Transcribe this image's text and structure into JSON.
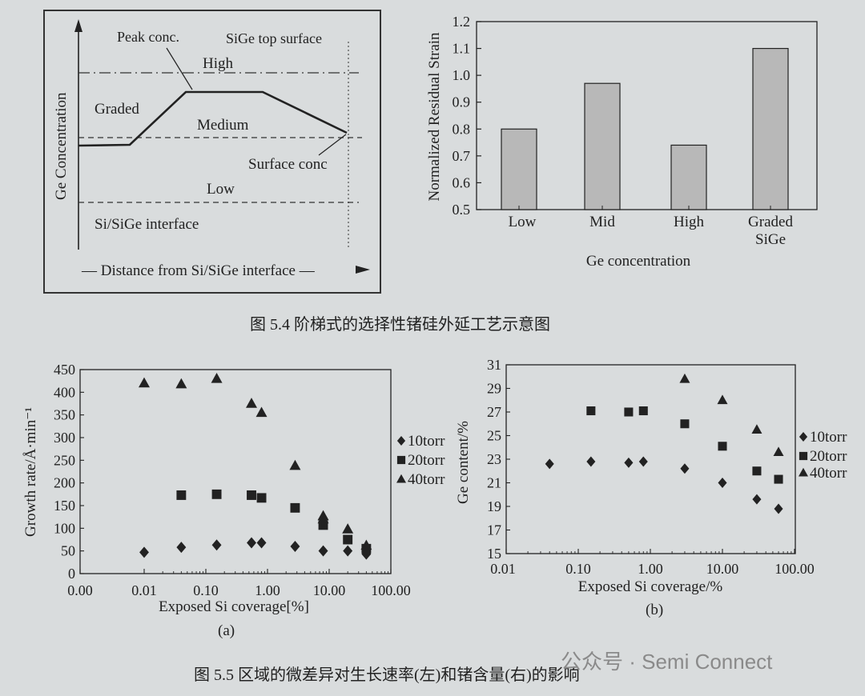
{
  "page": {
    "background": "#d9dcdd",
    "ink": "#222222",
    "bar_fill": "#b8b8b8"
  },
  "fig54": {
    "caption": "图 5.4   阶梯式的选择性锗硅外延工艺示意图",
    "left_schematic": {
      "ylabel": "Ge Concentration",
      "xlabel": "— Distance from Si/SiGe interface —",
      "labels": {
        "peak": "Peak conc.",
        "top": "SiGe top surface",
        "high": "High",
        "graded": "Graded",
        "medium": "Medium",
        "surface": "Surface conc",
        "low": "Low",
        "interface": "Si/SiGe interface"
      }
    }
  },
  "fig55": {
    "caption": "图 5.5   区域的微差异对生长速率(左)和锗含量(右)的影响",
    "sub_a": "(a)",
    "sub_b": "(b)"
  },
  "watermark": "公众号 · Semi Connect",
  "chart_data": [
    {
      "type": "bar",
      "categories": [
        "Low",
        "Mid",
        "High",
        "Graded SiGe"
      ],
      "category_lines": [
        [
          "Low"
        ],
        [
          "Mid"
        ],
        [
          "High"
        ],
        [
          "Graded",
          "SiGe"
        ]
      ],
      "values": [
        0.8,
        0.97,
        0.74,
        1.1
      ],
      "xlabel": "Ge concentration",
      "ylabel": "Normalized Residual Strain",
      "ylim": [
        0.5,
        1.2
      ],
      "yticks": [
        "0.5",
        "0.6",
        "0.7",
        "0.8",
        "0.9",
        "1.0",
        "1.1",
        "1.2"
      ],
      "grid": false
    },
    {
      "type": "scatter",
      "xscale": "log",
      "xlabel": "Exposed Si coverage[%]",
      "ylabel": "Growth rate/Å·min⁻¹",
      "xticks": [
        "0.00",
        "0.01",
        "0.10",
        "1.00",
        "10.00",
        "100.00"
      ],
      "yticks": [
        "0",
        "50",
        "100",
        "150",
        "200",
        "250",
        "300",
        "350",
        "400",
        "450"
      ],
      "ylim": [
        0,
        450
      ],
      "legend_position": "right",
      "series": [
        {
          "name": "10torr",
          "marker": "diamond",
          "x": [
            0.01,
            0.04,
            0.15,
            0.55,
            0.8,
            2.8,
            8,
            20,
            40,
            40
          ],
          "y": [
            47,
            58,
            63,
            68,
            68,
            60,
            50,
            50,
            55,
            43
          ]
        },
        {
          "name": "20torr",
          "marker": "square",
          "x": [
            0.04,
            0.15,
            0.55,
            0.8,
            2.8,
            8,
            20,
            40
          ],
          "y": [
            173,
            175,
            173,
            167,
            145,
            107,
            75,
            55
          ]
        },
        {
          "name": "40torr",
          "marker": "triangle",
          "x": [
            0.01,
            0.04,
            0.15,
            0.55,
            0.8,
            2.8,
            8,
            8,
            20,
            40
          ],
          "y": [
            420,
            418,
            430,
            375,
            355,
            238,
            127,
            120,
            98,
            62
          ]
        }
      ]
    },
    {
      "type": "scatter",
      "xscale": "log",
      "xlabel": "Exposed Si coverage/%",
      "ylabel": "Ge content/%",
      "xticks": [
        "0.01",
        "0.10",
        "1.00",
        "10.00",
        "100.00"
      ],
      "yticks": [
        "15",
        "17",
        "19",
        "21",
        "23",
        "25",
        "27",
        "29",
        "31"
      ],
      "ylim": [
        15,
        31
      ],
      "legend_position": "right",
      "series": [
        {
          "name": "10torr",
          "marker": "diamond",
          "x": [
            0.04,
            0.15,
            0.5,
            0.8,
            3,
            10,
            30,
            60
          ],
          "y": [
            22.6,
            22.8,
            22.7,
            22.8,
            22.2,
            21.0,
            19.6,
            18.8
          ]
        },
        {
          "name": "20torr",
          "marker": "square",
          "x": [
            0.15,
            0.5,
            0.8,
            3,
            10,
            30,
            60
          ],
          "y": [
            27.1,
            27.0,
            27.1,
            26.0,
            24.1,
            22.0,
            21.3
          ]
        },
        {
          "name": "40torr",
          "marker": "triangle",
          "x": [
            3,
            10,
            30,
            60
          ],
          "y": [
            29.8,
            28.0,
            25.5,
            23.6
          ]
        }
      ]
    }
  ]
}
